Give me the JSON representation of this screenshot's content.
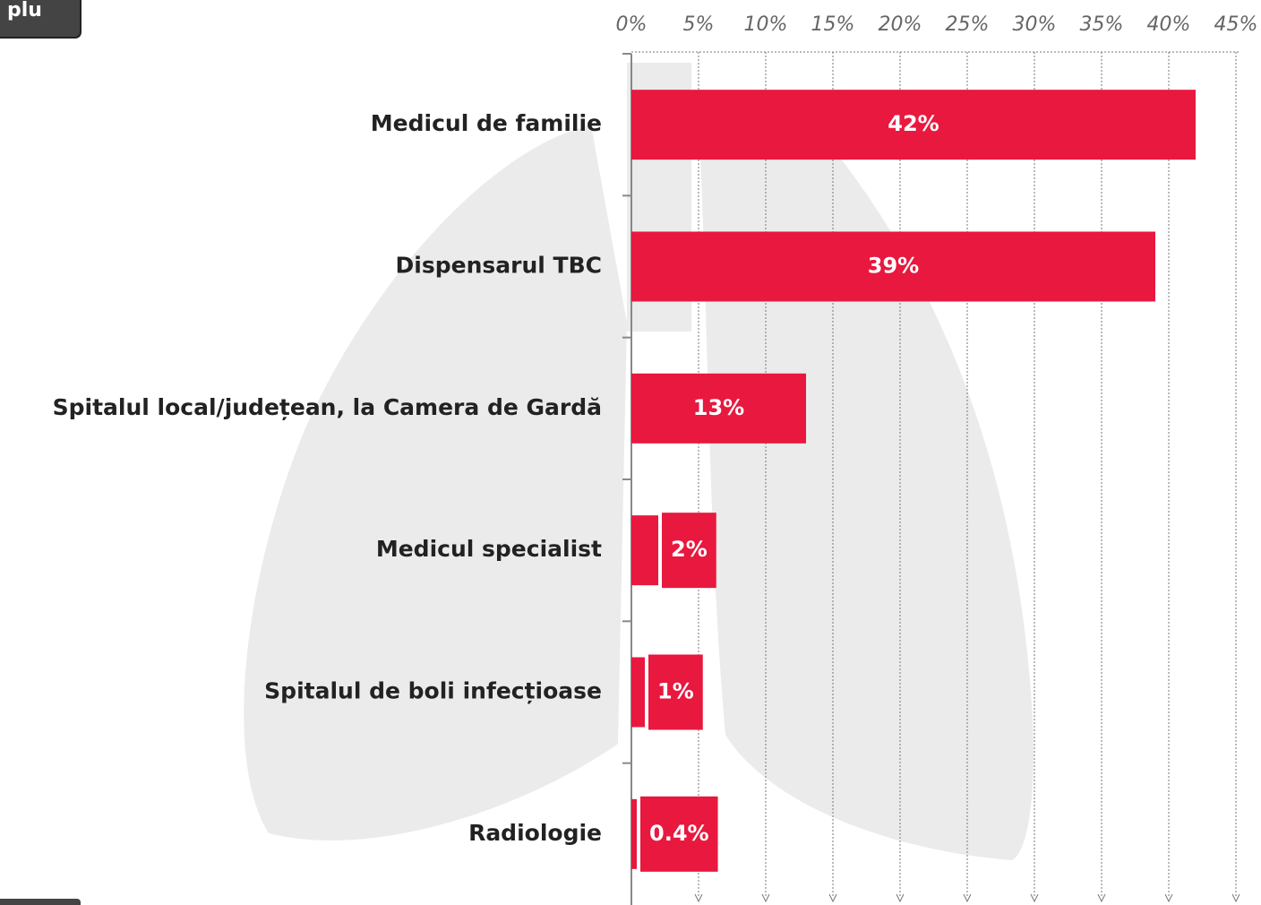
{
  "top_button": "plu",
  "chart_data": {
    "type": "hbar",
    "categories": [
      "Medicul de familie",
      "Dispensarul TBC",
      "Spitalul local/județean, la Camera de Gardă",
      "Medicul specialist",
      "Spitalul de boli infecțioase",
      "Radiologie"
    ],
    "values": [
      42,
      39,
      13,
      2,
      1,
      0.4
    ],
    "value_labels": [
      "42%",
      "39%",
      "13%",
      "2%",
      "1%",
      "0.4%"
    ],
    "color": "#e8183f",
    "xlim": [
      0,
      45
    ],
    "xticks": [
      {
        "value": 0,
        "label": "0%"
      },
      {
        "value": 5,
        "label": "5%"
      },
      {
        "value": 10,
        "label": "10%"
      },
      {
        "value": 15,
        "label": "15%"
      },
      {
        "value": 20,
        "label": "20%"
      },
      {
        "value": 25,
        "label": "25%"
      },
      {
        "value": 30,
        "label": "30%"
      },
      {
        "value": 35,
        "label": "35%"
      },
      {
        "value": 40,
        "label": "40%"
      },
      {
        "value": 45,
        "label": "45%"
      }
    ],
    "grid": true
  }
}
